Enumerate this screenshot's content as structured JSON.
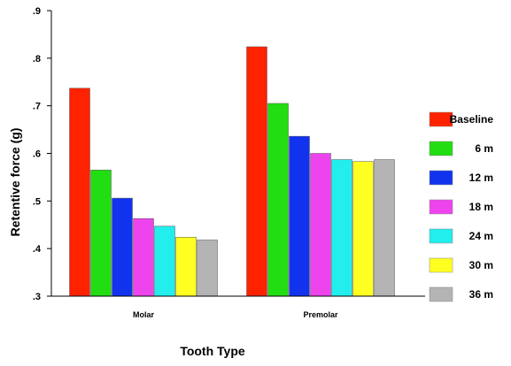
{
  "chart_data": {
    "type": "bar",
    "title": "",
    "xlabel": "Tooth Type",
    "ylabel": "Retentive force (g)",
    "categories": [
      "Molar",
      "Premolar"
    ],
    "ylim": [
      0.3,
      0.9
    ],
    "yticks": [
      ".3",
      ".4",
      ".5",
      ".6",
      ".7",
      ".8",
      ".9"
    ],
    "ytick_values": [
      0.3,
      0.4,
      0.5,
      0.6,
      0.7,
      0.8,
      0.9
    ],
    "grid": false,
    "legend_position": "right",
    "series": [
      {
        "name": "Baseline",
        "color": "#ff2200",
        "values": [
          0.737,
          0.824
        ]
      },
      {
        "name": "6 m",
        "color": "#22dd11",
        "values": [
          0.565,
          0.705
        ]
      },
      {
        "name": "12 m",
        "color": "#1133ee",
        "values": [
          0.506,
          0.636
        ]
      },
      {
        "name": "18 m",
        "color": "#ee44ee",
        "values": [
          0.463,
          0.6
        ]
      },
      {
        "name": "24 m",
        "color": "#22eeee",
        "values": [
          0.447,
          0.587
        ]
      },
      {
        "name": "30 m",
        "color": "#ffff22",
        "values": [
          0.424,
          0.583
        ]
      },
      {
        "name": "36 m",
        "color": "#b4b4b4",
        "values": [
          0.418,
          0.587
        ]
      }
    ]
  }
}
